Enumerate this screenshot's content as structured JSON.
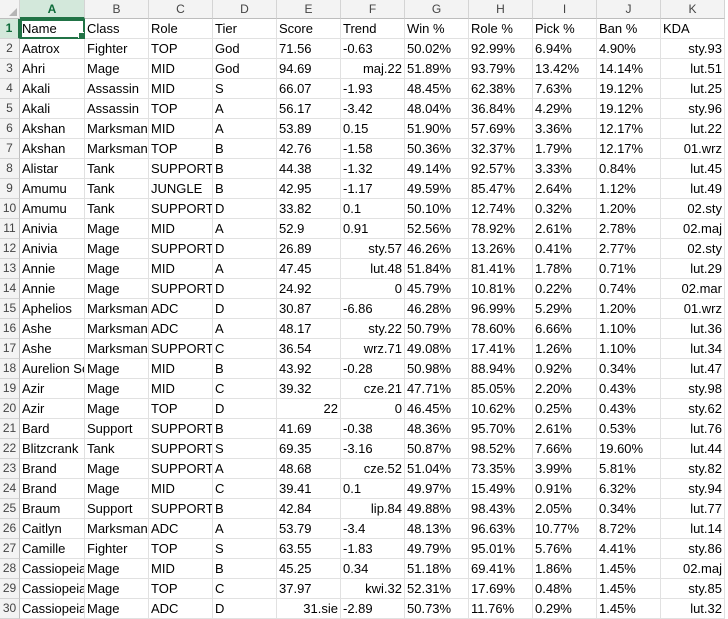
{
  "columns": [
    "A",
    "B",
    "C",
    "D",
    "E",
    "F",
    "G",
    "H",
    "I",
    "J",
    "K"
  ],
  "row_numbers": [
    "1",
    "2",
    "3",
    "4",
    "5",
    "6",
    "7",
    "8",
    "9",
    "10",
    "11",
    "12",
    "13",
    "14",
    "15",
    "16",
    "17",
    "18",
    "19",
    "20",
    "21",
    "22",
    "23",
    "24",
    "25",
    "26",
    "27",
    "28",
    "29",
    "30"
  ],
  "rows": [
    [
      "Name",
      "Class",
      "Role",
      "Tier",
      "Score",
      "Trend",
      "Win %",
      "Role %",
      "Pick %",
      "Ban %",
      "KDA"
    ],
    [
      "Aatrox",
      "Fighter",
      "TOP",
      "God",
      "71.56",
      "-0.63",
      "50.02%",
      "92.99%",
      "6.94%",
      "4.90%",
      "sty.93"
    ],
    [
      "Ahri",
      "Mage",
      "MID",
      "God",
      "94.69",
      "maj.22",
      "51.89%",
      "93.79%",
      "13.42%",
      "14.14%",
      "lut.51"
    ],
    [
      "Akali",
      "Assassin",
      "MID",
      "S",
      "66.07",
      "-1.93",
      "48.45%",
      "62.38%",
      "7.63%",
      "19.12%",
      "lut.25"
    ],
    [
      "Akali",
      "Assassin",
      "TOP",
      "A",
      "56.17",
      "-3.42",
      "48.04%",
      "36.84%",
      "4.29%",
      "19.12%",
      "sty.96"
    ],
    [
      "Akshan",
      "Marksman",
      "MID",
      "A",
      "53.89",
      "0.15",
      "51.90%",
      "57.69%",
      "3.36%",
      "12.17%",
      "lut.22"
    ],
    [
      "Akshan",
      "Marksman",
      "TOP",
      "B",
      "42.76",
      "-1.58",
      "50.36%",
      "32.37%",
      "1.79%",
      "12.17%",
      "01.wrz"
    ],
    [
      "Alistar",
      "Tank",
      "SUPPORT",
      "B",
      "44.38",
      "-1.32",
      "49.14%",
      "92.57%",
      "3.33%",
      "0.84%",
      "lut.45"
    ],
    [
      "Amumu",
      "Tank",
      "JUNGLE",
      "B",
      "42.95",
      "-1.17",
      "49.59%",
      "85.47%",
      "2.64%",
      "1.12%",
      "lut.49"
    ],
    [
      "Amumu",
      "Tank",
      "SUPPORT",
      "D",
      "33.82",
      "0.1",
      "50.10%",
      "12.74%",
      "0.32%",
      "1.20%",
      "02.sty"
    ],
    [
      "Anivia",
      "Mage",
      "MID",
      "A",
      "52.9",
      "0.91",
      "52.56%",
      "78.92%",
      "2.61%",
      "2.78%",
      "02.maj"
    ],
    [
      "Anivia",
      "Mage",
      "SUPPORT",
      "D",
      "26.89",
      "sty.57",
      "46.26%",
      "13.26%",
      "0.41%",
      "2.77%",
      "02.sty"
    ],
    [
      "Annie",
      "Mage",
      "MID",
      "A",
      "47.45",
      "lut.48",
      "51.84%",
      "81.41%",
      "1.78%",
      "0.71%",
      "lut.29"
    ],
    [
      "Annie",
      "Mage",
      "SUPPORT",
      "D",
      "24.92",
      "0",
      "45.79%",
      "10.81%",
      "0.22%",
      "0.74%",
      "02.mar"
    ],
    [
      "Aphelios",
      "Marksman",
      "ADC",
      "D",
      "30.87",
      "-6.86",
      "46.28%",
      "96.99%",
      "5.29%",
      "1.20%",
      "01.wrz"
    ],
    [
      "Ashe",
      "Marksman",
      "ADC",
      "A",
      "48.17",
      "sty.22",
      "50.79%",
      "78.60%",
      "6.66%",
      "1.10%",
      "lut.36"
    ],
    [
      "Ashe",
      "Marksman",
      "SUPPORT",
      "C",
      "36.54",
      "wrz.71",
      "49.08%",
      "17.41%",
      "1.26%",
      "1.10%",
      "lut.34"
    ],
    [
      "Aurelion Sol",
      "Mage",
      "MID",
      "B",
      "43.92",
      "-0.28",
      "50.98%",
      "88.94%",
      "0.92%",
      "0.34%",
      "lut.47"
    ],
    [
      "Azir",
      "Mage",
      "MID",
      "C",
      "39.32",
      "cze.21",
      "47.71%",
      "85.05%",
      "2.20%",
      "0.43%",
      "sty.98"
    ],
    [
      "Azir",
      "Mage",
      "TOP",
      "D",
      "22",
      "0",
      "46.45%",
      "10.62%",
      "0.25%",
      "0.43%",
      "sty.62"
    ],
    [
      "Bard",
      "Support",
      "SUPPORT",
      "B",
      "41.69",
      "-0.38",
      "48.36%",
      "95.70%",
      "2.61%",
      "0.53%",
      "lut.76"
    ],
    [
      "Blitzcrank",
      "Tank",
      "SUPPORT",
      "S",
      "69.35",
      "-3.16",
      "50.87%",
      "98.52%",
      "7.66%",
      "19.60%",
      "lut.44"
    ],
    [
      "Brand",
      "Mage",
      "SUPPORT",
      "A",
      "48.68",
      "cze.52",
      "51.04%",
      "73.35%",
      "3.99%",
      "5.81%",
      "sty.82"
    ],
    [
      "Brand",
      "Mage",
      "MID",
      "C",
      "39.41",
      "0.1",
      "49.97%",
      "15.49%",
      "0.91%",
      "6.32%",
      "sty.94"
    ],
    [
      "Braum",
      "Support",
      "SUPPORT",
      "B",
      "42.84",
      "lip.84",
      "49.88%",
      "98.43%",
      "2.05%",
      "0.34%",
      "lut.77"
    ],
    [
      "Caitlyn",
      "Marksman",
      "ADC",
      "A",
      "53.79",
      "-3.4",
      "48.13%",
      "96.63%",
      "10.77%",
      "8.72%",
      "lut.14"
    ],
    [
      "Camille",
      "Fighter",
      "TOP",
      "S",
      "63.55",
      "-1.83",
      "49.79%",
      "95.01%",
      "5.76%",
      "4.41%",
      "sty.86"
    ],
    [
      "Cassiopeia",
      "Mage",
      "MID",
      "B",
      "45.25",
      "0.34",
      "51.18%",
      "69.41%",
      "1.86%",
      "1.45%",
      "02.maj"
    ],
    [
      "Cassiopeia",
      "Mage",
      "TOP",
      "C",
      "37.97",
      "kwi.32",
      "52.31%",
      "17.69%",
      "0.48%",
      "1.45%",
      "sty.85"
    ],
    [
      "Cassiopeia",
      "Mage",
      "ADC",
      "D",
      "31.sie",
      "-2.89",
      "50.73%",
      "11.76%",
      "0.29%",
      "1.45%",
      "lut.32"
    ]
  ],
  "right_aligned": [
    [],
    [],
    [],
    [],
    [],
    [],
    [],
    [],
    [],
    [],
    [],
    [],
    [],
    [],
    [],
    [],
    [],
    [],
    [],
    [],
    [],
    [],
    [],
    [],
    [],
    [],
    [],
    [],
    [],
    []
  ]
}
